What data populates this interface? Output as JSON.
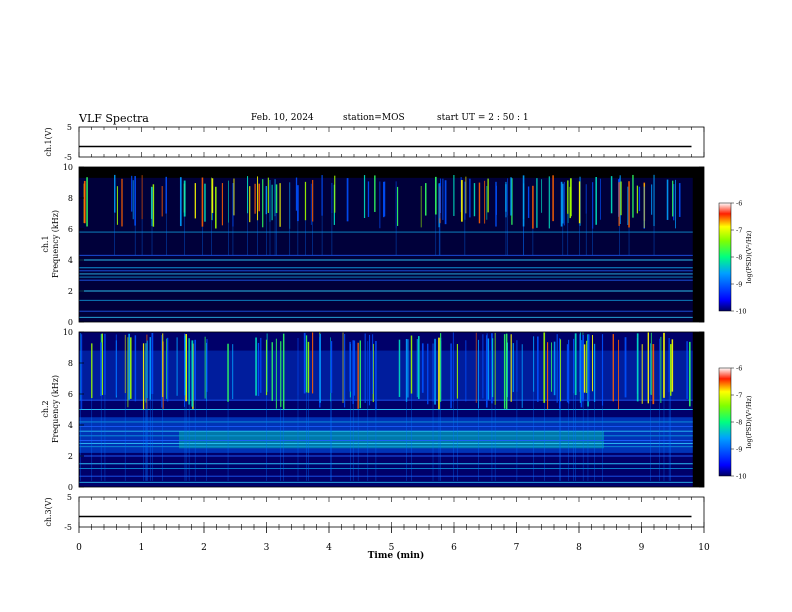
{
  "header": {
    "title": "VLF Spectra",
    "date": "Feb. 10, 2024",
    "station": "station=MOS",
    "start": "start UT =  2 : 50 : 1"
  },
  "chart_data": [
    {
      "type": "line",
      "panel": "ch1-waveform",
      "ylabel": "ch.1(V)",
      "ylim": [
        -5,
        5
      ],
      "y_ticks": [
        "5",
        "-5"
      ],
      "x": [
        0,
        9.8
      ],
      "values": [
        -1.5,
        -1.5
      ]
    },
    {
      "type": "heatmap",
      "panel": "ch1-spectrogram",
      "ylabel_channel": "ch.1",
      "ylabel": "Frequency (kHz)",
      "ylim": [
        0,
        10
      ],
      "y_ticks": [
        "0",
        "2",
        "4",
        "6",
        "8",
        "10"
      ],
      "xlim": [
        0,
        10
      ],
      "colorbar": {
        "label": "log(PSD)(V²/Hz)",
        "range": [
          -10,
          -6
        ],
        "ticks": [
          "-6",
          "-7",
          "-8",
          "-9",
          "-10"
        ]
      },
      "lines_khz": [
        0.3,
        0.7,
        1.4,
        2.0,
        2.7,
        2.9,
        3.1,
        3.3,
        3.5,
        4.0,
        4.3,
        5.8
      ],
      "emission_band_khz": [
        6,
        9.5
      ]
    },
    {
      "type": "heatmap",
      "panel": "ch2-spectrogram",
      "ylabel_channel": "ch.2",
      "ylabel": "Frequency (kHz)",
      "ylim": [
        0,
        10
      ],
      "y_ticks": [
        "0",
        "2",
        "4",
        "6",
        "8",
        "10"
      ],
      "xlim": [
        0,
        10
      ],
      "colorbar": {
        "label": "log(PSD)(V²/Hz)",
        "range": [
          -10,
          -6
        ],
        "ticks": [
          "-6",
          "-7",
          "-8",
          "-9",
          "-10"
        ]
      },
      "lines_khz": [
        0.3,
        0.7,
        1.2,
        1.5,
        2.0,
        2.6,
        2.8,
        3.0,
        3.3,
        3.6,
        3.9,
        4.2,
        5.0,
        5.6
      ],
      "emission_band_khz": [
        5,
        10
      ]
    },
    {
      "type": "line",
      "panel": "ch3-waveform",
      "ylabel": "ch.3(V)",
      "ylim": [
        -5,
        5
      ],
      "y_ticks": [
        "5",
        "-5"
      ],
      "x": [
        0,
        9.8
      ],
      "values": [
        -1.5,
        -1.5
      ]
    }
  ],
  "xaxis": {
    "label": "Time (min)",
    "ticks": [
      "0",
      "1",
      "2",
      "3",
      "4",
      "5",
      "6",
      "7",
      "8",
      "9",
      "10"
    ],
    "xlim": [
      0,
      10
    ]
  }
}
